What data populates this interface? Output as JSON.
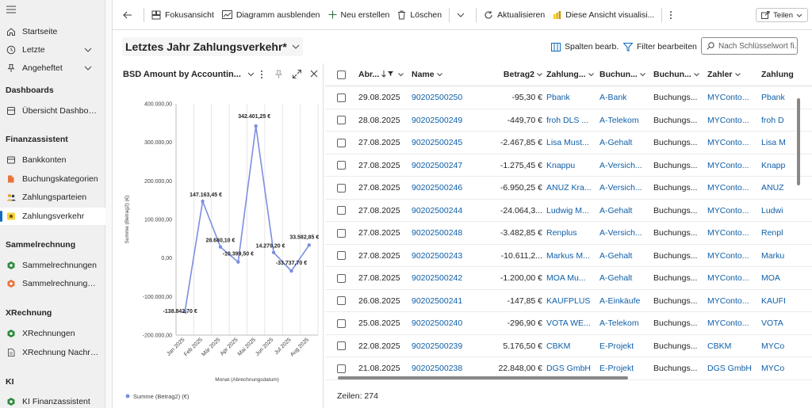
{
  "sidebar": {
    "items": [
      {
        "label": "Startseite",
        "icon": "home-icon"
      },
      {
        "label": "Letzte",
        "icon": "clock-icon"
      },
      {
        "label": "Angeheftet",
        "icon": "pin-icon"
      }
    ],
    "sections": [
      {
        "title": "Dashboards",
        "items": [
          {
            "label": "Übersicht Dashboard",
            "icon": "dashboard-icon"
          }
        ]
      },
      {
        "title": "Finanzassistent",
        "items": [
          {
            "label": "Bankkonten",
            "icon": "bank-icon"
          },
          {
            "label": "Buchungskategorien",
            "icon": "category-icon"
          },
          {
            "label": "Zahlungsparteien",
            "icon": "people-icon"
          },
          {
            "label": "Zahlungsverkehr",
            "icon": "payment-icon"
          }
        ]
      },
      {
        "title": "Sammelrechnung",
        "items": [
          {
            "label": "Sammelrechnungen",
            "icon": "invoice-icon"
          },
          {
            "label": "Sammelrechnungsdet...",
            "icon": "invoice-detail-icon"
          }
        ]
      },
      {
        "title": "XRechnung",
        "items": [
          {
            "label": "XRechnungen",
            "icon": "xinvoice-icon"
          },
          {
            "label": "XRechnung Nachrich...",
            "icon": "document-icon"
          }
        ]
      },
      {
        "title": "KI",
        "items": [
          {
            "label": "KI Finanzassistent",
            "icon": "ai-icon"
          }
        ]
      }
    ]
  },
  "toolbar": {
    "focus": "Fokusansicht",
    "hide_chart": "Diagramm ausblenden",
    "new": "Neu erstellen",
    "delete": "Löschen",
    "refresh": "Aktualisieren",
    "visualize": "Diese Ansicht visualisi...",
    "share": "Teilen"
  },
  "view": {
    "title": "Letztes Jahr Zahlungsverkehr*",
    "edit_columns": "Spalten bearb.",
    "edit_filter": "Filter bearbeiten",
    "search_placeholder": "Nach Schlüsselwort fi..."
  },
  "chart_data": {
    "type": "line",
    "title": "BSD Amount by Accountin...",
    "xlabel": "Monat (Abrechnungsdatum)",
    "ylabel": "Summe (Betrag2) (€)",
    "categories": [
      "Jan 2025",
      "Feb 2025",
      "Mär 2025",
      "Apr 2025",
      "Mai 2025",
      "Jun 2025",
      "Jul 2025",
      "Aug 2025"
    ],
    "series": [
      {
        "name": "Summe (Betrag2) (€)",
        "values": [
          -138842.7,
          147163.45,
          28680.1,
          -10399.5,
          342401.25,
          14279.2,
          -33737.7,
          33582.85
        ]
      }
    ],
    "data_labels": [
      "-138.842,70 €",
      "147.163,45 €",
      "28.680,10 €",
      "-10.399,50 €",
      "342.401,25 €",
      "14.279,20 €",
      "-33.737,70 €",
      "33.582,85 €"
    ],
    "yticks": [
      -200000,
      -100000,
      0,
      100000,
      200000,
      300000,
      400000
    ],
    "ytick_labels": [
      "-200.000,00",
      "-100.000,00",
      "0,00",
      "100.000,00",
      "200.000,00",
      "300.000,00",
      "400.000,00"
    ],
    "ylim": [
      -200000,
      400000
    ],
    "grid": "vertical",
    "legend": "bottom-left",
    "color": "#7b8fe0"
  },
  "grid": {
    "columns": [
      "Abr...",
      "Name",
      "Betrag2",
      "Zahlung...",
      "Buchun...",
      "Buchun...",
      "Zahler",
      "Zahlung"
    ],
    "rows": [
      [
        "29.08.2025",
        "90202500250",
        "-95,30 €",
        "Pbank",
        "A-Bank",
        "Buchungs...",
        "MYConto...",
        "Pbank"
      ],
      [
        "28.08.2025",
        "90202500249",
        "-449,70 €",
        "froh DLS ...",
        "A-Telekom",
        "Buchungs...",
        "MYConto...",
        "froh D"
      ],
      [
        "27.08.2025",
        "90202500245",
        "-2.467,85 €",
        "Lisa Must...",
        "A-Gehalt",
        "Buchungs...",
        "MYConto...",
        "Lisa M"
      ],
      [
        "27.08.2025",
        "90202500247",
        "-1.275,45 €",
        "Knappu",
        "A-Versich...",
        "Buchungs...",
        "MYConto...",
        "Knapp"
      ],
      [
        "27.08.2025",
        "90202500246",
        "-6.950,25 €",
        "ANUZ Kra...",
        "A-Versich...",
        "Buchungs...",
        "MYConto...",
        "ANUZ"
      ],
      [
        "27.08.2025",
        "90202500244",
        "-24.064,3...",
        "Ludwig M...",
        "A-Gehalt",
        "Buchungs...",
        "MYConto...",
        "Ludwi"
      ],
      [
        "27.08.2025",
        "90202500248",
        "-3.482,85 €",
        "Renplus",
        "A-Versich...",
        "Buchungs...",
        "MYConto...",
        "Renpl"
      ],
      [
        "27.08.2025",
        "90202500243",
        "-10.611,2...",
        "Markus M...",
        "A-Gehalt",
        "Buchungs...",
        "MYConto...",
        "Marku"
      ],
      [
        "27.08.2025",
        "90202500242",
        "-1.200,00 €",
        "MOA Mu...",
        "A-Gehalt",
        "Buchungs...",
        "MYConto...",
        "MOA"
      ],
      [
        "26.08.2025",
        "90202500241",
        "-147,85 €",
        "KAUFPLUS",
        "A-Einkäufe",
        "Buchungs...",
        "MYConto...",
        "KAUFI"
      ],
      [
        "25.08.2025",
        "90202500240",
        "-296,90 €",
        "VOTA WE...",
        "A-Telekom",
        "Buchungs...",
        "MYConto...",
        "VOTA"
      ],
      [
        "22.08.2025",
        "90202500239",
        "5.176,50 €",
        "CBKM",
        "E-Projekt",
        "Buchungs...",
        "CBKM",
        "MYCo"
      ],
      [
        "21.08.2025",
        "90202500238",
        "22.848,00 €",
        "DGS GmbH",
        "E-Projekt",
        "Buchungs...",
        "DGS GmbH",
        "MYCo"
      ]
    ],
    "row_count": "Zeilen: 274"
  }
}
